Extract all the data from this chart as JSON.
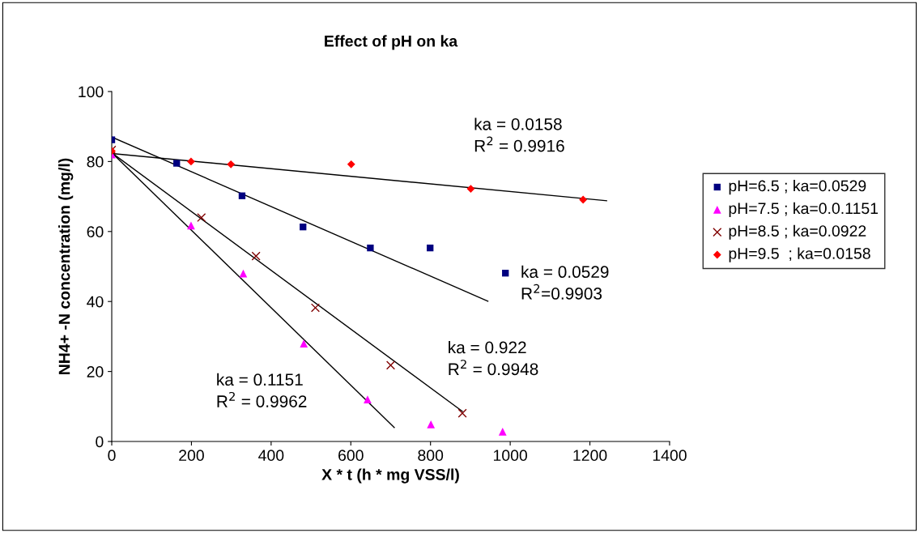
{
  "chart_data": {
    "type": "scatter",
    "title": "Effect of pH on ka",
    "xlabel": "X * t (h * mg VSS/l)",
    "ylabel": "NH4+ -N concentration (mg/l)",
    "xlim": [
      0,
      1400
    ],
    "xticks": [
      0,
      200,
      400,
      600,
      800,
      1000,
      1200,
      1400
    ],
    "ylim": [
      0,
      100
    ],
    "yticks": [
      0,
      20,
      40,
      60,
      80,
      100
    ],
    "grid": false,
    "legend": "right",
    "series": [
      {
        "name": "pH=6.5 ; ka=0.0529",
        "color": "#000080",
        "marker": "square",
        "x": [
          0,
          163,
          327,
          480,
          649,
          799,
          988
        ],
        "values": [
          86.2,
          79.5,
          70.2,
          61.3,
          55.3,
          55.3,
          48.1
        ]
      },
      {
        "name": "pH=7.5 ; ka=0.0.1151",
        "color": "#ff00ff",
        "marker": "triangle",
        "x": [
          0,
          199,
          330,
          482,
          642,
          801,
          981
        ],
        "values": [
          82.0,
          61.7,
          48.0,
          28.0,
          12.0,
          4.9,
          2.8
        ]
      },
      {
        "name": "pH=8.5 ; ka=0.0922",
        "color": "#800000",
        "marker": "cross",
        "x": [
          0,
          225,
          362,
          511,
          700,
          880
        ],
        "values": [
          83.3,
          64.0,
          53.0,
          38.2,
          21.8,
          8.1
        ]
      },
      {
        "name": "pH=9.5  ; ka=0.0158",
        "color": "#ff0000",
        "marker": "diamond",
        "x": [
          0,
          199,
          299,
          601,
          901,
          1183
        ],
        "values": [
          83.0,
          80.0,
          79.2,
          79.2,
          72.2,
          69.1
        ]
      },
      {
        "type": "line",
        "color": "#000000",
        "x": [
          0,
          944
        ],
        "values": [
          87.0,
          40.1
        ]
      },
      {
        "type": "line",
        "color": "#000000",
        "x": [
          0,
          709
        ],
        "values": [
          82.5,
          4.0
        ]
      },
      {
        "type": "line",
        "color": "#000000",
        "x": [
          0,
          880
        ],
        "values": [
          82.5,
          8.6
        ]
      },
      {
        "type": "line",
        "color": "#000000",
        "x": [
          0,
          1242
        ],
        "values": [
          82.3,
          68.8
        ]
      }
    ],
    "annotations": [
      "ka = 0.0158\nR$^{2}$ = 0.9916",
      "ka = 0.0529\nR$^{2}$=0.9903",
      "ka = 0.922\nR$^{2}$ = 0.9948",
      "ka = 0.1151\nR$^{2}$ = 0.9962"
    ]
  }
}
